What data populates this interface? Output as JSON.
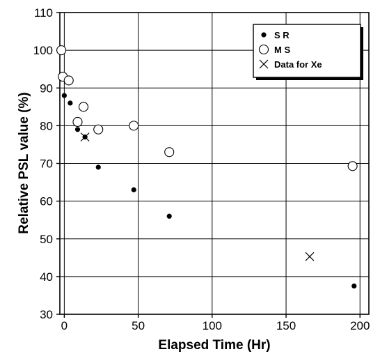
{
  "chart_data": {
    "type": "scatter",
    "xlabel": "Elapsed Time (Hr)",
    "ylabel": "Relative PSL value (%)",
    "xlim": [
      -3,
      206
    ],
    "ylim": [
      30,
      110
    ],
    "xticks": [
      0,
      50,
      100,
      150,
      200
    ],
    "yticks": [
      30,
      40,
      50,
      60,
      70,
      80,
      90,
      100,
      110
    ],
    "x_tick_labels": [
      "0",
      "50",
      "100",
      "150",
      "200"
    ],
    "y_tick_labels": [
      "30",
      "40",
      "50",
      "60",
      "70",
      "80",
      "90",
      "100",
      "110"
    ],
    "grid": true,
    "legend_position": "top-right",
    "series": [
      {
        "name": "S R",
        "marker": "filled-circle",
        "points": [
          {
            "x": 0,
            "y": 88
          },
          {
            "x": 4,
            "y": 86
          },
          {
            "x": 9,
            "y": 79
          },
          {
            "x": 14,
            "y": 77
          },
          {
            "x": 23,
            "y": 69
          },
          {
            "x": 47,
            "y": 63
          },
          {
            "x": 71,
            "y": 56
          },
          {
            "x": 196,
            "y": 37.5
          }
        ]
      },
      {
        "name": "M S",
        "marker": "open-circle",
        "points": [
          {
            "x": -2,
            "y": 100
          },
          {
            "x": -1,
            "y": 93
          },
          {
            "x": 3,
            "y": 92
          },
          {
            "x": 9,
            "y": 81
          },
          {
            "x": 13,
            "y": 85
          },
          {
            "x": 23,
            "y": 79
          },
          {
            "x": 47,
            "y": 80
          },
          {
            "x": 71,
            "y": 73
          },
          {
            "x": 195,
            "y": 69.3
          }
        ]
      },
      {
        "name": "Data for Xe",
        "marker": "cross",
        "points": [
          {
            "x": 14,
            "y": 77
          },
          {
            "x": 166,
            "y": 45.3
          }
        ]
      }
    ]
  }
}
